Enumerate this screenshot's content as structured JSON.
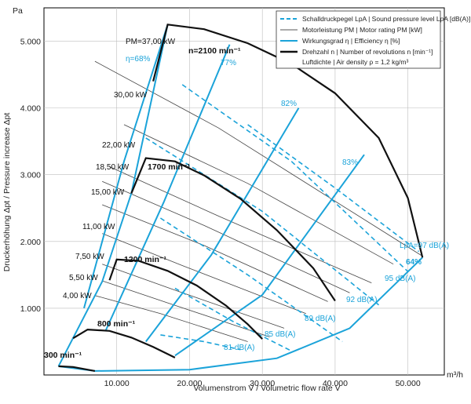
{
  "chart_data": {
    "type": "line",
    "units": {
      "x": "m³/h",
      "y": "Pa"
    },
    "xlabel": "Volumenstrom V̇ / Volumetric flow rate V̇",
    "ylabel": "Druckerhöhung Δpt / Pressure increase Δpt",
    "xlim": [
      0,
      55000
    ],
    "ylim": [
      0,
      5500
    ],
    "x_ticks": [
      "10.000",
      "20.000",
      "30.000",
      "40.000",
      "50.000"
    ],
    "y_ticks": [
      "1.000",
      "2.000",
      "3.000",
      "4.000",
      "5.000"
    ],
    "grid": true,
    "legend": {
      "position": "top-right",
      "entries": [
        {
          "text": "Schalldruckpegel LpA | Sound pressure level LpA [dB(A)]",
          "style": "dashed",
          "color": "#1ba3d9"
        },
        {
          "text": "Motorleistung PM | Motor rating PM [kW]",
          "style": "thin",
          "color": "#555555"
        },
        {
          "text": "Wirkungsgrad η | Efficiency η [%]",
          "style": "solid",
          "color": "#1ba3d9"
        },
        {
          "text": "Drehzahl n | Number of revolutions n [min⁻¹]",
          "style": "bold",
          "color": "#111111"
        },
        {
          "text": "Luftdichte | Air density ρ = 1,2 kg/m³",
          "style": "none",
          "color": ""
        }
      ]
    },
    "speed_curves": [
      {
        "name": "300 min⁻¹",
        "points": [
          [
            2000,
            130
          ],
          [
            4000,
            120
          ],
          [
            7000,
            60
          ]
        ]
      },
      {
        "name": "800 min⁻¹",
        "points": [
          [
            4000,
            550
          ],
          [
            6000,
            680
          ],
          [
            9000,
            660
          ],
          [
            12000,
            560
          ],
          [
            15000,
            420
          ],
          [
            18000,
            260
          ]
        ]
      },
      {
        "name": "1200 min⁻¹",
        "points": [
          [
            9000,
            1420
          ],
          [
            10000,
            1730
          ],
          [
            13000,
            1710
          ],
          [
            17000,
            1560
          ],
          [
            21000,
            1340
          ],
          [
            25000,
            1040
          ],
          [
            28000,
            760
          ],
          [
            30000,
            540
          ]
        ]
      },
      {
        "name": "1700 min⁻¹",
        "points": [
          [
            12000,
            2720
          ],
          [
            14000,
            3250
          ],
          [
            18000,
            3200
          ],
          [
            22000,
            2990
          ],
          [
            27000,
            2640
          ],
          [
            32000,
            2170
          ],
          [
            37000,
            1600
          ],
          [
            40000,
            1110
          ]
        ]
      },
      {
        "name": "2100 min⁻¹",
        "points": [
          [
            15000,
            4400
          ],
          [
            17000,
            5250
          ],
          [
            22000,
            5180
          ],
          [
            28000,
            4970
          ],
          [
            34000,
            4660
          ],
          [
            40000,
            4220
          ],
          [
            46000,
            3550
          ],
          [
            50000,
            2650
          ],
          [
            52000,
            1760
          ]
        ]
      }
    ],
    "efficiency_curves": [
      {
        "name": "68%",
        "points": [
          [
            5500,
            1000
          ],
          [
            11000,
            3200
          ],
          [
            17000,
            5250
          ]
        ]
      },
      {
        "name": "77%",
        "points": [
          [
            8500,
            670
          ],
          [
            16500,
            2600
          ],
          [
            25500,
            4950
          ]
        ]
      },
      {
        "name": "82%",
        "points": [
          [
            14000,
            500
          ],
          [
            23000,
            1800
          ],
          [
            35000,
            4000
          ]
        ]
      },
      {
        "name": "83%",
        "points": [
          [
            18000,
            290
          ],
          [
            30000,
            1200
          ],
          [
            44000,
            3300
          ]
        ]
      },
      {
        "name": "64%",
        "points": [
          [
            51500,
            1800
          ]
        ]
      }
    ],
    "power_lines": [
      {
        "name": "37,00 kW",
        "points": [
          [
            7000,
            4700
          ],
          [
            24000,
            3700
          ],
          [
            52000,
            1780
          ]
        ]
      },
      {
        "name": "30,00 kW",
        "points": [
          [
            11000,
            3750
          ],
          [
            28000,
            2870
          ],
          [
            48000,
            1660
          ]
        ]
      },
      {
        "name": "22,00 kW",
        "points": [
          [
            9000,
            3120
          ],
          [
            24000,
            2380
          ],
          [
            45000,
            1380
          ]
        ]
      },
      {
        "name": "18,50 kW",
        "points": [
          [
            8000,
            2900
          ],
          [
            22000,
            2240
          ],
          [
            42000,
            1230
          ]
        ]
      },
      {
        "name": "15,00 kW",
        "points": [
          [
            8000,
            2550
          ],
          [
            22000,
            1940
          ],
          [
            39000,
            1100
          ]
        ]
      },
      {
        "name": "11,00 kW",
        "points": [
          [
            8000,
            2120
          ],
          [
            19000,
            1640
          ],
          [
            36000,
            920
          ]
        ]
      },
      {
        "name": "7,50 kW",
        "points": [
          [
            8000,
            1660
          ],
          [
            18000,
            1270
          ],
          [
            33000,
            700
          ]
        ]
      },
      {
        "name": "5,50 kW",
        "points": [
          [
            8000,
            1410
          ],
          [
            17000,
            1080
          ],
          [
            31000,
            570
          ]
        ]
      },
      {
        "name": "4,00 kW",
        "points": [
          [
            7000,
            1190
          ],
          [
            16000,
            920
          ],
          [
            28000,
            500
          ]
        ]
      }
    ],
    "sound_curves": [
      {
        "name": "81 dB(A)",
        "points": [
          [
            16000,
            600
          ],
          [
            22000,
            500
          ],
          [
            27000,
            380
          ]
        ]
      },
      {
        "name": "85 dB(A)",
        "points": [
          [
            18000,
            1300
          ],
          [
            26000,
            800
          ],
          [
            34000,
            360
          ]
        ]
      },
      {
        "name": "89 dB(A)",
        "points": [
          [
            16000,
            2350
          ],
          [
            28000,
            1500
          ],
          [
            41000,
            500
          ]
        ]
      },
      {
        "name": "92 dB(A)",
        "points": [
          [
            14000,
            3550
          ],
          [
            30000,
            2450
          ],
          [
            46000,
            1050
          ]
        ]
      },
      {
        "name": "95 dB(A)",
        "points": [
          [
            19000,
            4350
          ],
          [
            34000,
            3200
          ],
          [
            50000,
            1550
          ]
        ]
      },
      {
        "name": "LpA=97 dB(A)",
        "points": [
          [
            28000,
            3750
          ],
          [
            40000,
            2800
          ],
          [
            51500,
            1850
          ]
        ]
      }
    ],
    "labels": {
      "y_unit": "Pa",
      "x_unit": "m³/h",
      "top_power": "PM=37,00 kW",
      "top_eff": "η=68%",
      "s300": "300 min⁻¹",
      "s800": "800 min⁻¹",
      "s1200": "1200 min⁻¹",
      "s1700": "1700 min⁻¹",
      "s2100": "n=2100 min⁻¹",
      "e77": "77%",
      "e82": "82%",
      "e83": "83%",
      "e64": "64%",
      "p30": "30,00 kW",
      "p22": "22,00 kW",
      "p185": "18,50 kW",
      "p15": "15,00 kW",
      "p11": "11,00 kW",
      "p75": "7,50 kW",
      "p55": "5,50 kW",
      "p4": "4,00 kW",
      "l97": "LpA=97 dB(A)",
      "l95": "95 dB(A)",
      "l92": "92 dB(A)",
      "l89": "89 dB(A)",
      "l85": "85 dB(A)",
      "l81": "81 dB(A)"
    }
  }
}
